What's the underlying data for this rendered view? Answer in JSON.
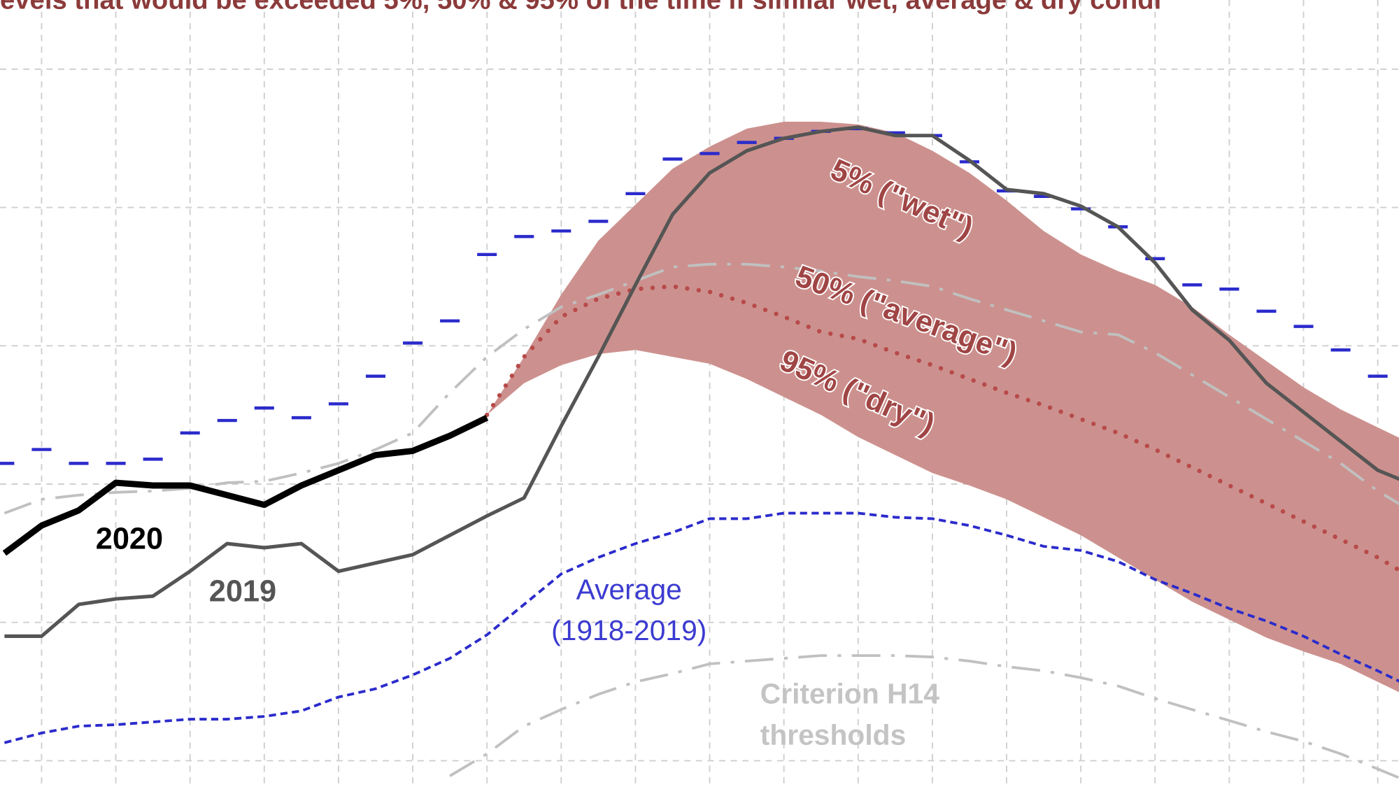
{
  "chart_data": {
    "type": "line",
    "title": "evels that would be exceeded 5%, 50% & 95% of the time if similar wet, average & dry condi",
    "categories": [
      null,
      null,
      null,
      null,
      null,
      null,
      null,
      null,
      null,
      null,
      null,
      null,
      null,
      null,
      null,
      null,
      null,
      null,
      null,
      null,
      null,
      null,
      null,
      null,
      null,
      null,
      null,
      null,
      null,
      null,
      null,
      null,
      null,
      null,
      null,
      null,
      null,
      null,
      null
    ],
    "ylim": [
      -0.19,
      5.5
    ],
    "yticks": [
      0,
      1,
      2,
      3,
      4,
      5
    ],
    "grid": true,
    "fill_between": [
      7,
      8
    ],
    "fill_color": "#cc918e",
    "series": [
      {
        "color": "#000000",
        "style": "solid",
        "values": [
          1.5,
          1.7,
          1.81,
          2.01,
          1.99,
          1.99,
          1.92,
          1.85,
          1.99,
          2.1,
          2.21,
          2.24,
          2.35,
          2.48,
          null,
          null,
          null,
          null,
          null,
          null,
          null,
          null,
          null,
          null,
          null,
          null,
          null,
          null,
          null,
          null,
          null,
          null,
          null,
          null,
          null,
          null,
          null,
          null,
          null
        ]
      },
      {
        "color": "#555555",
        "style": "solid",
        "values": [
          0.9,
          0.9,
          1.13,
          1.17,
          1.19,
          1.37,
          1.57,
          1.54,
          1.57,
          1.37,
          1.43,
          1.49,
          1.63,
          1.77,
          1.9,
          2.42,
          2.92,
          3.44,
          3.95,
          4.25,
          4.41,
          4.5,
          4.55,
          4.58,
          4.52,
          4.52,
          4.34,
          4.13,
          4.1,
          4.01,
          3.86,
          3.6,
          3.26,
          3.04,
          2.73,
          2.52,
          2.31,
          2.1,
          1.99
        ]
      },
      {
        "color": "#2b2bcc",
        "style": "steps",
        "values": [
          2.15,
          2.25,
          2.15,
          2.15,
          2.18,
          2.37,
          2.46,
          2.55,
          2.48,
          2.58,
          2.78,
          3.02,
          3.18,
          3.66,
          3.79,
          3.83,
          3.9,
          4.1,
          4.35,
          4.39,
          4.47,
          4.5,
          4.55,
          4.57,
          4.54,
          4.52,
          4.33,
          4.12,
          4.08,
          3.99,
          3.86,
          3.63,
          3.44,
          3.41,
          3.25,
          3.14,
          2.97,
          2.78,
          2.73
        ]
      },
      {
        "color": "#2b2bcc",
        "style": "dashed",
        "values": [
          0.13,
          0.2,
          0.25,
          0.26,
          0.28,
          0.3,
          0.3,
          0.32,
          0.36,
          0.46,
          0.52,
          0.62,
          0.74,
          0.91,
          1.13,
          1.35,
          1.47,
          1.57,
          1.65,
          1.75,
          1.75,
          1.79,
          1.79,
          1.79,
          1.76,
          1.75,
          1.7,
          1.63,
          1.55,
          1.52,
          1.44,
          1.31,
          1.21,
          1.1,
          1.01,
          0.9,
          0.77,
          0.65,
          0.52
        ]
      },
      {
        "color": "#c0c0c0",
        "style": "dashdot",
        "values": [
          null,
          null,
          null,
          null,
          null,
          null,
          null,
          null,
          null,
          null,
          null,
          null,
          -0.11,
          0.05,
          0.25,
          0.37,
          0.48,
          0.57,
          0.63,
          0.7,
          0.72,
          0.74,
          0.76,
          0.76,
          0.76,
          0.75,
          0.72,
          0.68,
          0.65,
          0.6,
          0.54,
          0.45,
          0.37,
          0.29,
          0.21,
          0.14,
          0.05,
          -0.06,
          -0.17
        ]
      },
      {
        "color": "#c0c0c0",
        "style": "dashdot",
        "values": [
          1.79,
          1.89,
          1.92,
          1.94,
          1.95,
          1.97,
          2.01,
          2.02,
          2.08,
          2.15,
          2.25,
          2.37,
          2.66,
          2.92,
          3.12,
          3.28,
          3.37,
          3.47,
          3.57,
          3.59,
          3.59,
          3.57,
          3.54,
          3.5,
          3.47,
          3.43,
          3.34,
          3.26,
          3.18,
          3.1,
          3.08,
          2.95,
          2.79,
          2.63,
          2.47,
          2.31,
          2.15,
          1.95,
          1.79
        ]
      },
      {
        "color": "#b84a4a",
        "style": "dotted",
        "values": [
          null,
          null,
          null,
          null,
          null,
          null,
          null,
          null,
          null,
          null,
          null,
          null,
          null,
          2.5,
          2.92,
          3.21,
          3.34,
          3.41,
          3.43,
          3.39,
          3.31,
          3.21,
          3.1,
          3.05,
          2.95,
          2.86,
          2.76,
          2.66,
          2.57,
          2.47,
          2.37,
          2.25,
          2.12,
          1.99,
          1.86,
          1.73,
          1.6,
          1.47,
          1.31
        ]
      },
      {
        "color": "#cc918e",
        "style": "none",
        "values": [
          null,
          null,
          null,
          null,
          null,
          null,
          null,
          null,
          null,
          null,
          null,
          null,
          null,
          2.5,
          2.92,
          3.37,
          3.76,
          4.02,
          4.28,
          4.44,
          4.57,
          4.62,
          4.62,
          4.6,
          4.54,
          4.41,
          4.25,
          4.05,
          3.83,
          3.66,
          3.54,
          3.44,
          3.28,
          3.08,
          2.89,
          2.7,
          2.54,
          2.41,
          2.28
        ]
      },
      {
        "color": "#cc918e",
        "style": "none",
        "values": [
          null,
          null,
          null,
          null,
          null,
          null,
          null,
          null,
          null,
          null,
          null,
          null,
          null,
          2.5,
          2.73,
          2.86,
          2.94,
          2.97,
          2.92,
          2.87,
          2.76,
          2.63,
          2.5,
          2.34,
          2.21,
          2.08,
          1.99,
          1.89,
          1.76,
          1.63,
          1.47,
          1.31,
          1.15,
          1.02,
          0.89,
          0.79,
          0.7,
          0.57,
          0.44
        ]
      }
    ],
    "annotations": [
      "2020",
      "2019",
      "Average",
      "(1918-2019)",
      "Criterion H14",
      "thresholds",
      "5% (\"wet\")",
      "50% (\"average\")",
      "95% (\"dry\")"
    ]
  }
}
